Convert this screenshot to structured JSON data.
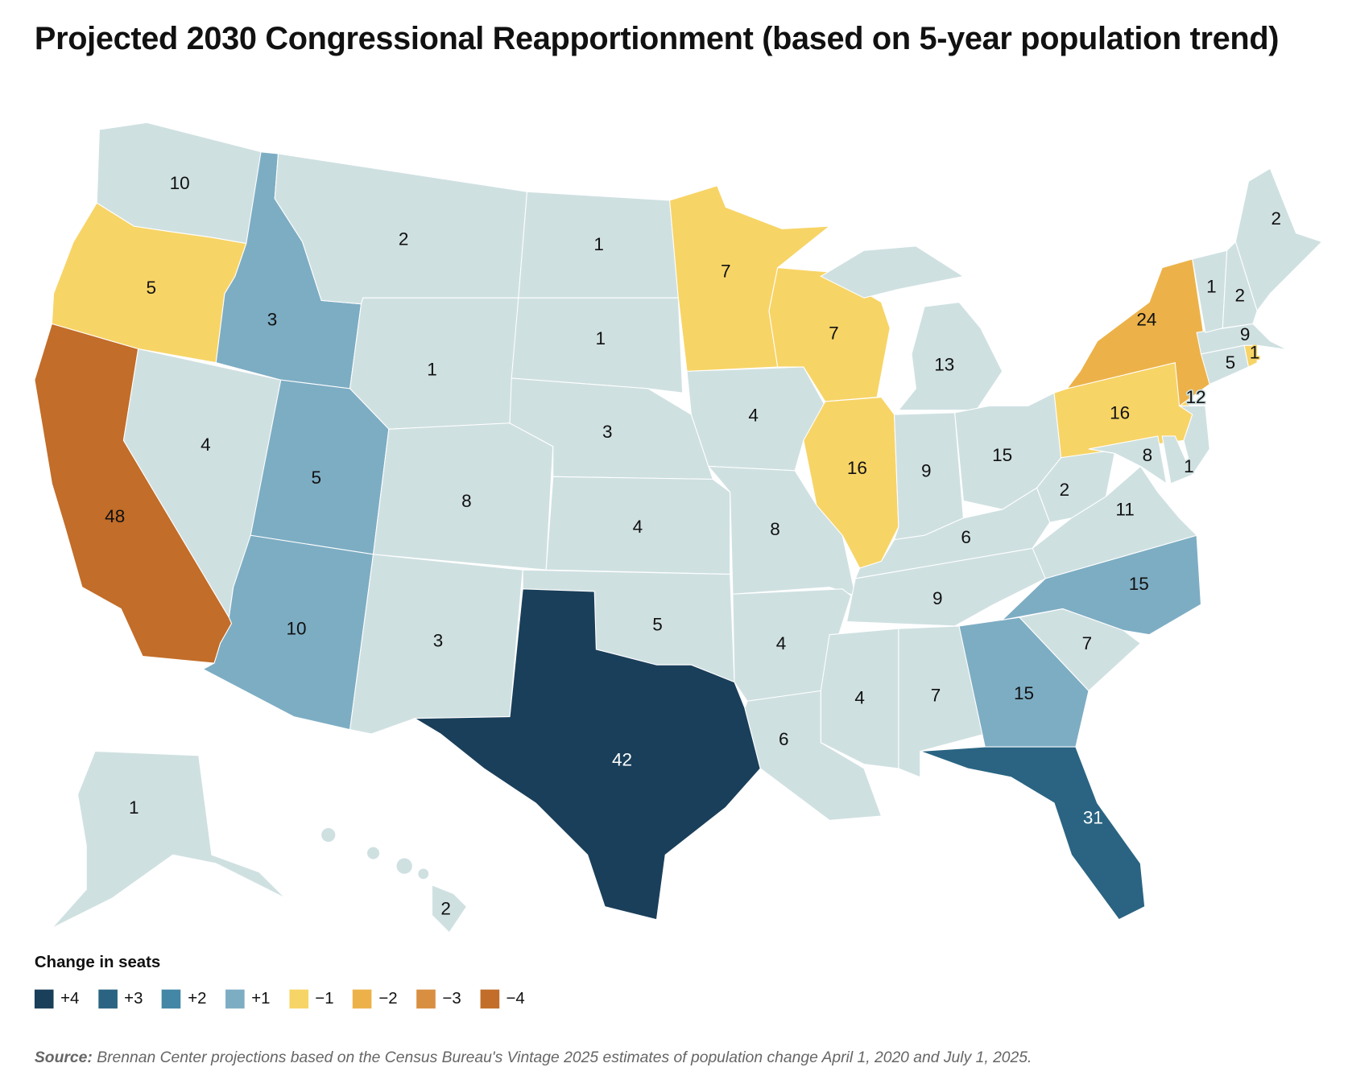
{
  "title": "Projected 2030 Congressional Reapportionment (based on 5-year population trend)",
  "legend": {
    "title": "Change in seats",
    "items": [
      {
        "label": "+4",
        "change": 4,
        "color": "#1a3f5a"
      },
      {
        "label": "+3",
        "change": 3,
        "color": "#2a6482"
      },
      {
        "label": "+2",
        "change": 2,
        "color": "#4386a5"
      },
      {
        "label": "+1",
        "change": 1,
        "color": "#7dadc3"
      },
      {
        "label": "−1",
        "change": -1,
        "color": "#f7d466"
      },
      {
        "label": "−2",
        "change": -2,
        "color": "#ecb249"
      },
      {
        "label": "−3",
        "change": -3,
        "color": "#d98f41"
      },
      {
        "label": "−4",
        "change": -4,
        "color": "#c26d29"
      }
    ],
    "no_change_color": "#cfe0e1"
  },
  "source": {
    "label": "Source:",
    "text": "Brennan Center projections based on the Census Bureau's Vintage 2025 estimates of population change April 1, 2020  and July 1, 2025."
  },
  "states": [
    {
      "abbr": "WA",
      "seats": 10,
      "change": 0
    },
    {
      "abbr": "OR",
      "seats": 5,
      "change": -1
    },
    {
      "abbr": "CA",
      "seats": 48,
      "change": -4
    },
    {
      "abbr": "NV",
      "seats": 4,
      "change": 0
    },
    {
      "abbr": "ID",
      "seats": 3,
      "change": 1
    },
    {
      "abbr": "MT",
      "seats": 2,
      "change": 0
    },
    {
      "abbr": "WY",
      "seats": 1,
      "change": 0
    },
    {
      "abbr": "UT",
      "seats": 5,
      "change": 1
    },
    {
      "abbr": "CO",
      "seats": 8,
      "change": 0
    },
    {
      "abbr": "AZ",
      "seats": 10,
      "change": 1
    },
    {
      "abbr": "NM",
      "seats": 3,
      "change": 0
    },
    {
      "abbr": "ND",
      "seats": 1,
      "change": 0
    },
    {
      "abbr": "SD",
      "seats": 1,
      "change": 0
    },
    {
      "abbr": "NE",
      "seats": 3,
      "change": 0
    },
    {
      "abbr": "KS",
      "seats": 4,
      "change": 0
    },
    {
      "abbr": "OK",
      "seats": 5,
      "change": 0
    },
    {
      "abbr": "TX",
      "seats": 42,
      "change": 4
    },
    {
      "abbr": "MN",
      "seats": 7,
      "change": -1
    },
    {
      "abbr": "IA",
      "seats": 4,
      "change": 0
    },
    {
      "abbr": "MO",
      "seats": 8,
      "change": 0
    },
    {
      "abbr": "AR",
      "seats": 4,
      "change": 0
    },
    {
      "abbr": "LA",
      "seats": 6,
      "change": 0
    },
    {
      "abbr": "WI",
      "seats": 7,
      "change": -1
    },
    {
      "abbr": "IL",
      "seats": 16,
      "change": -1
    },
    {
      "abbr": "MI",
      "seats": 13,
      "change": 0
    },
    {
      "abbr": "IN",
      "seats": 9,
      "change": 0
    },
    {
      "abbr": "OH",
      "seats": 15,
      "change": 0
    },
    {
      "abbr": "KY",
      "seats": 6,
      "change": 0
    },
    {
      "abbr": "TN",
      "seats": 9,
      "change": 0
    },
    {
      "abbr": "MS",
      "seats": 4,
      "change": 0
    },
    {
      "abbr": "AL",
      "seats": 7,
      "change": 0
    },
    {
      "abbr": "GA",
      "seats": 15,
      "change": 1
    },
    {
      "abbr": "FL",
      "seats": 31,
      "change": 3
    },
    {
      "abbr": "SC",
      "seats": 7,
      "change": 0
    },
    {
      "abbr": "NC",
      "seats": 15,
      "change": 1
    },
    {
      "abbr": "VA",
      "seats": 11,
      "change": 0
    },
    {
      "abbr": "WV",
      "seats": 2,
      "change": 0
    },
    {
      "abbr": "PA",
      "seats": 16,
      "change": -1
    },
    {
      "abbr": "NY",
      "seats": 24,
      "change": -2
    },
    {
      "abbr": "NJ",
      "seats": 12,
      "change": 0
    },
    {
      "abbr": "MD",
      "seats": 8,
      "change": 0
    },
    {
      "abbr": "DE",
      "seats": 1,
      "change": 0
    },
    {
      "abbr": "CT",
      "seats": 5,
      "change": 0
    },
    {
      "abbr": "RI",
      "seats": 1,
      "change": -1
    },
    {
      "abbr": "MA",
      "seats": 9,
      "change": 0
    },
    {
      "abbr": "VT",
      "seats": 1,
      "change": 0
    },
    {
      "abbr": "NH",
      "seats": 2,
      "change": 0
    },
    {
      "abbr": "ME",
      "seats": 2,
      "change": 0
    },
    {
      "abbr": "AK",
      "seats": 1,
      "change": 0
    },
    {
      "abbr": "HI",
      "seats": 2,
      "change": 0
    }
  ]
}
